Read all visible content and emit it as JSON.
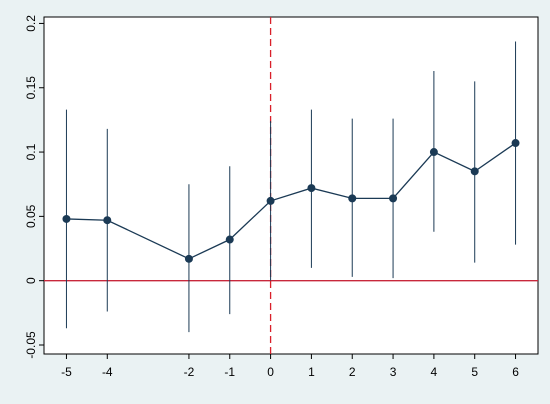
{
  "chart_data": {
    "type": "scatter",
    "title": "",
    "xlabel": "",
    "ylabel": "",
    "x": [
      -5,
      -4,
      -2,
      -1,
      0,
      1,
      2,
      3,
      4,
      5,
      6
    ],
    "series": [
      {
        "estimate": [
          0.048,
          0.047,
          0.017,
          0.032,
          0.062,
          0.072,
          0.064,
          0.064,
          0.1,
          0.085,
          0.107
        ],
        "ci_low": [
          -0.037,
          -0.024,
          -0.04,
          -0.026,
          0.0,
          0.01,
          0.003,
          0.002,
          0.038,
          0.014,
          0.028
        ],
        "ci_high": [
          0.133,
          0.118,
          0.075,
          0.089,
          0.124,
          0.133,
          0.126,
          0.126,
          0.163,
          0.155,
          0.186
        ]
      }
    ],
    "xticks": [
      -5,
      -4,
      -2,
      -1,
      0,
      1,
      2,
      3,
      4,
      5,
      6
    ],
    "xtick_labels": [
      "-5",
      "-4",
      "-2",
      "-1",
      "0",
      "1",
      "2",
      "3",
      "4",
      "5",
      "6"
    ],
    "yticks": [
      -0.05,
      0,
      0.05,
      0.1,
      0.15,
      0.2
    ],
    "ytick_labels": [
      "-0.05",
      "0",
      "0.05",
      "0.1",
      "0.15",
      "0.2"
    ],
    "xlim": [
      -5.55,
      6.55
    ],
    "ylim": [
      -0.057,
      0.205
    ],
    "reference_lines": {
      "horizontal_y": 0,
      "vertical_x": 0
    },
    "grid": false,
    "legend": "none",
    "colors": {
      "background": "#eaf2f3",
      "plot_background": "#ffffff",
      "series": "#1b3a55",
      "horizontal_reference": "#c8283c",
      "vertical_reference": "#d9202a"
    }
  }
}
